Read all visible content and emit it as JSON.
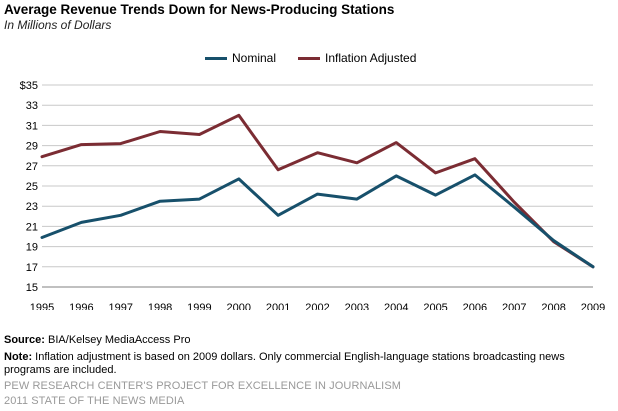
{
  "chart_data": {
    "type": "line",
    "title": "Average Revenue  Trends Down for News-Producing  Stations",
    "subtitle": "In Millions of Dollars",
    "xlabel": "",
    "ylabel": "",
    "x": [
      1995,
      1996,
      1997,
      1998,
      1999,
      2000,
      2001,
      2002,
      2003,
      2004,
      2005,
      2006,
      2007,
      2008,
      2009
    ],
    "series": [
      {
        "name": "Nominal",
        "color": "#17506b",
        "values": [
          19.9,
          21.4,
          22.1,
          23.5,
          23.7,
          25.7,
          22.1,
          24.2,
          23.7,
          26.0,
          24.1,
          26.1,
          22.9,
          19.6,
          17.0
        ]
      },
      {
        "name": "Inflation Adjusted",
        "color": "#7b2c33",
        "values": [
          27.9,
          29.1,
          29.2,
          30.4,
          30.1,
          32.0,
          26.6,
          28.3,
          27.3,
          29.3,
          26.3,
          27.7,
          23.4,
          19.5,
          17.0
        ]
      }
    ],
    "ylim": [
      15,
      35
    ],
    "yticks": [
      15,
      17,
      19,
      21,
      23,
      25,
      27,
      29,
      31,
      33,
      35
    ],
    "ytick_labels": [
      "15",
      "17",
      "19",
      "21",
      "23",
      "25",
      "27",
      "29",
      "31",
      "33",
      "$35"
    ],
    "grid": true,
    "legend_position": "top-center"
  },
  "footer": {
    "source_label": "Source:",
    "source_text": "BIA/Kelsey MediaAccess Pro",
    "note_label": "Note:",
    "note_text": "Inflation adjustment is based on 2009 dollars. Only commercial English-language stations broadcasting news programs are included."
  },
  "branding": {
    "line1": "PEW RESEARCH CENTER'S PROJECT FOR EXCELLENCE IN JOURNALISM",
    "line2": "2011 STATE OF THE NEWS MEDIA"
  }
}
